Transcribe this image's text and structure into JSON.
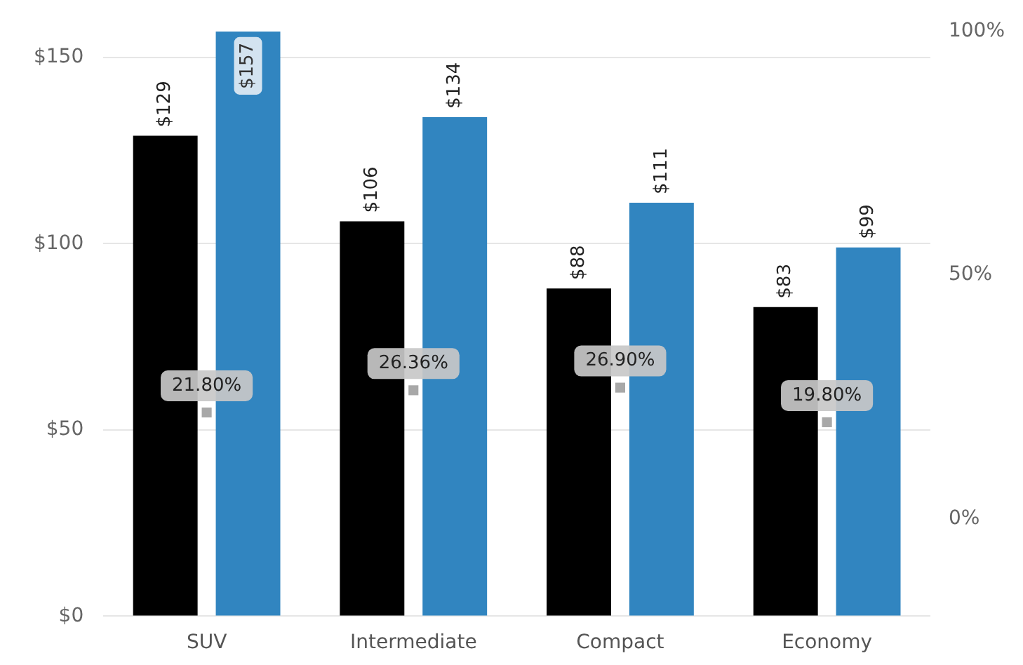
{
  "chart_data": {
    "type": "bar",
    "categories": [
      "SUV",
      "Intermediate",
      "Compact",
      "Economy"
    ],
    "series": [
      {
        "color": "#000000",
        "values": [
          129,
          106,
          88,
          83
        ],
        "value_labels": [
          "$129",
          "$106",
          "$88",
          "$83"
        ]
      },
      {
        "color": "#3185c0",
        "values": [
          157,
          134,
          111,
          99
        ],
        "value_labels": [
          "$157",
          "$134",
          "$111",
          "$99"
        ]
      },
      {
        "type": "scatter",
        "axis": "y2",
        "color": "#a8a8a8",
        "values": [
          21.8,
          26.36,
          26.9,
          19.8
        ],
        "value_labels": [
          "21.80%",
          "26.36%",
          "26.90%",
          "19.80%"
        ]
      }
    ],
    "ylim": [
      0,
      157
    ],
    "yticks": [
      {
        "value": 0,
        "label": "$0"
      },
      {
        "value": 50,
        "label": "$50"
      },
      {
        "value": 100,
        "label": "$100"
      },
      {
        "value": 150,
        "label": "$150"
      }
    ],
    "y2lim": [
      -20,
      100
    ],
    "y2ticks": [
      {
        "value": 0,
        "label": "0%"
      },
      {
        "value": 50,
        "label": "50%"
      },
      {
        "value": 100,
        "label": "100%"
      }
    ],
    "grid": "y",
    "legend": false,
    "marker": "square"
  }
}
